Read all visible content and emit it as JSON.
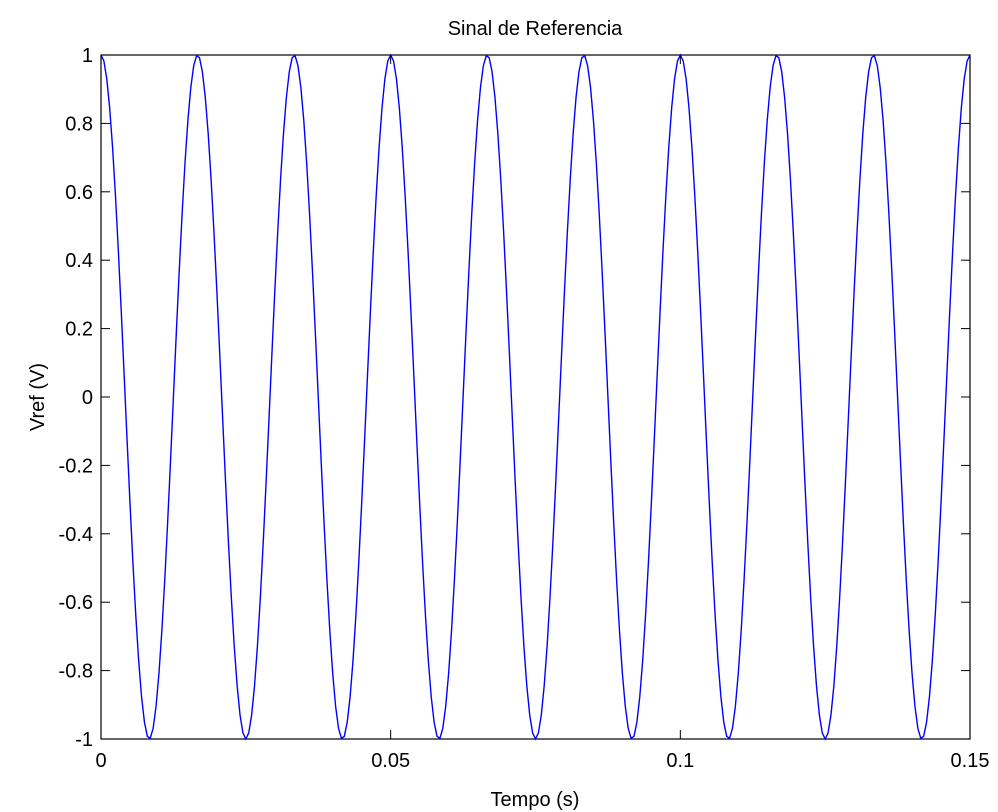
{
  "chart_data": {
    "type": "line",
    "title": "Sinal de Referencia",
    "xlabel": "Tempo (s)",
    "ylabel": "Vref (V)",
    "xlim": [
      0,
      0.15
    ],
    "ylim": [
      -1,
      1
    ],
    "xticks": [
      0,
      0.05,
      0.1,
      0.15
    ],
    "xtick_labels": [
      "0",
      "0.05",
      "0.1",
      "0.15"
    ],
    "yticks": [
      -1,
      -0.8,
      -0.6,
      -0.4,
      -0.2,
      0,
      0.2,
      0.4,
      0.6,
      0.8,
      1
    ],
    "ytick_labels": [
      "-1",
      "-0.8",
      "-0.6",
      "-0.4",
      "-0.2",
      "0",
      "0.2",
      "0.4",
      "0.6",
      "0.8",
      "1"
    ],
    "grid": false,
    "series": [
      {
        "function": "cos(2*pi*f*t)",
        "frequency_hz": 60,
        "amplitude": 1,
        "t_step": 0.0005,
        "color": "#0000ff"
      }
    ]
  }
}
